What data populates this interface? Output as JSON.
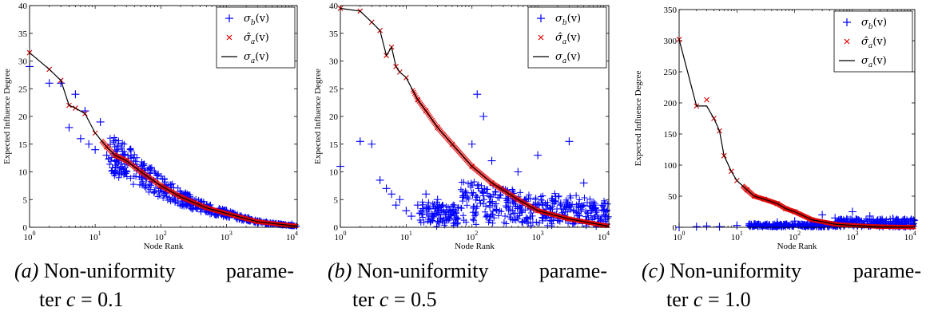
{
  "panels": [
    {
      "caption": {
        "label": "(a)",
        "line1_words": [
          "Non-uniformity",
          "parame-"
        ],
        "line2_prefix": "ter ",
        "var": "c",
        "line2_suffix": " = 0.1"
      },
      "legend": {
        "b": "σ_b(v)",
        "ahat": "σ̂_a(v)",
        "a": "σ_a(v)"
      }
    },
    {
      "caption": {
        "label": "(b)",
        "line1_words": [
          "Non-uniformity",
          "parame-"
        ],
        "line2_prefix": "ter ",
        "var": "c",
        "line2_suffix": " = 0.5"
      },
      "legend": {
        "b": "σ_b(v)",
        "ahat": "σ̂_a(v)",
        "a": "σ_a(v)"
      }
    },
    {
      "caption": {
        "label": "(c)",
        "line1_words": [
          "Non-uniformity",
          "parame-"
        ],
        "line2_prefix": "ter ",
        "var": "c",
        "line2_suffix": " = 1.0"
      },
      "legend": {
        "b": "σ_b(v)",
        "ahat": "σ̂_a(v)",
        "a": "σ_a(v)"
      }
    }
  ],
  "chart_data": [
    {
      "type": "scatter",
      "xlabel": "Node Rank",
      "ylabel": "Expected Influence Degree",
      "xscale": "log",
      "xlim": [
        1,
        12000
      ],
      "ylim": [
        0,
        40
      ],
      "yticks": [
        0,
        5,
        10,
        15,
        20,
        25,
        30,
        35,
        40
      ],
      "xticks": [
        1,
        10,
        100,
        1000,
        10000
      ],
      "legend_position": "top-right",
      "colors": {
        "sigma_b": "#0000ff",
        "sigma_a_hat": "#e00000",
        "sigma_a": "#000000"
      },
      "series": [
        {
          "name": "σ_b(v)",
          "marker": "+",
          "x": [
            1,
            2,
            3,
            4,
            5,
            6,
            7,
            8,
            10,
            12,
            15,
            20,
            30,
            50,
            100,
            200,
            500,
            1000,
            3000,
            10000
          ],
          "y": [
            29,
            26,
            26,
            18,
            24,
            16,
            21,
            15,
            14,
            19,
            13,
            12,
            10,
            11,
            7,
            6,
            4,
            3,
            1,
            0.5
          ]
        },
        {
          "name": "σ̂_a(v)",
          "marker": "x",
          "x": [
            1,
            2,
            3,
            4,
            5,
            7,
            10,
            15,
            20,
            30,
            50,
            100,
            200,
            500,
            1000,
            3000,
            10000
          ],
          "y": [
            31.5,
            28.5,
            26.5,
            22,
            21.5,
            20.5,
            17,
            14.5,
            13,
            12,
            10,
            7.5,
            5.5,
            3.5,
            2.5,
            1,
            0.3
          ]
        },
        {
          "name": "σ_a(v)",
          "marker": "line",
          "x": [
            1,
            2,
            3,
            4,
            5,
            7,
            10,
            15,
            20,
            30,
            50,
            100,
            200,
            500,
            1000,
            3000,
            12000
          ],
          "y": [
            31.5,
            28.5,
            26.5,
            22,
            21.5,
            20.5,
            17,
            14.5,
            13,
            12,
            10,
            7.5,
            5.5,
            3.5,
            2.5,
            1,
            0.2
          ]
        }
      ]
    },
    {
      "type": "scatter",
      "xlabel": "Node Rank",
      "ylabel": "Expected Influence Degree",
      "xscale": "log",
      "xlim": [
        1,
        12000
      ],
      "ylim": [
        0,
        40
      ],
      "yticks": [
        0,
        5,
        10,
        15,
        20,
        25,
        30,
        35,
        40
      ],
      "xticks": [
        1,
        10,
        100,
        1000,
        10000
      ],
      "legend_position": "top-right",
      "colors": {
        "sigma_b": "#0000ff",
        "sigma_a_hat": "#e00000",
        "sigma_a": "#000000"
      },
      "series": [
        {
          "name": "σ_b(v)",
          "marker": "+",
          "x": [
            1,
            2,
            3,
            4,
            5,
            6,
            7,
            8,
            10,
            12,
            15,
            20,
            30,
            50,
            100,
            120,
            150,
            200,
            500,
            1000,
            3000,
            5000,
            10000
          ],
          "y": [
            11,
            15.5,
            15,
            8.5,
            7,
            6,
            4,
            5,
            3,
            2,
            4,
            6,
            5,
            3,
            15,
            24,
            20,
            12,
            10,
            13,
            15.5,
            8,
            3
          ]
        },
        {
          "name": "σ̂_a(v)",
          "marker": "x",
          "x": [
            1,
            2,
            3,
            4,
            5,
            6,
            7,
            8,
            10,
            15,
            20,
            30,
            50,
            100,
            200,
            500,
            1000,
            3000,
            10000
          ],
          "y": [
            39.5,
            39,
            37,
            35.5,
            31,
            32.5,
            29,
            28,
            27,
            23,
            21,
            18,
            15,
            11,
            8,
            5,
            3,
            1.5,
            0.3
          ]
        },
        {
          "name": "σ_a(v)",
          "marker": "line",
          "x": [
            1,
            2,
            3,
            4,
            5,
            6,
            7,
            8,
            10,
            15,
            20,
            30,
            50,
            100,
            200,
            500,
            1000,
            3000,
            12000
          ],
          "y": [
            39.5,
            39,
            37,
            35.5,
            31,
            32.5,
            29,
            28,
            27,
            23,
            21,
            18,
            15,
            11,
            8,
            5,
            3,
            1.5,
            0.2
          ]
        }
      ]
    },
    {
      "type": "scatter",
      "xlabel": "Node Rank",
      "ylabel": "Expected Influence Degree",
      "xscale": "log",
      "xlim": [
        1,
        12000
      ],
      "ylim": [
        0,
        350
      ],
      "yticks": [
        0,
        50,
        100,
        150,
        200,
        250,
        300,
        350
      ],
      "xticks": [
        1,
        10,
        100,
        1000,
        10000
      ],
      "legend_position": "top-right",
      "colors": {
        "sigma_b": "#0000ff",
        "sigma_a_hat": "#e00000",
        "sigma_a": "#000000"
      },
      "series": [
        {
          "name": "σ_b(v)",
          "marker": "+",
          "x": [
            1,
            2,
            3,
            5,
            10,
            20,
            50,
            100,
            200,
            300,
            500,
            1000,
            2000,
            3000,
            5000,
            10000
          ],
          "y": [
            0,
            1,
            2,
            1,
            3,
            5,
            8,
            10,
            8,
            20,
            15,
            25,
            18,
            12,
            14,
            10
          ]
        },
        {
          "name": "σ̂_a(v)",
          "marker": "x",
          "x": [
            1,
            2,
            3,
            4,
            5,
            6,
            8,
            10,
            15,
            20,
            30,
            50,
            70,
            100,
            200,
            500,
            1000,
            3000,
            10000
          ],
          "y": [
            302,
            195,
            205,
            175,
            155,
            115,
            90,
            75,
            60,
            50,
            45,
            38,
            30,
            25,
            12,
            5,
            3,
            1,
            0.5
          ]
        },
        {
          "name": "σ_a(v)",
          "marker": "line",
          "x": [
            1,
            2,
            3,
            4,
            5,
            6,
            8,
            10,
            15,
            20,
            30,
            50,
            70,
            100,
            200,
            500,
            1000,
            3000,
            12000
          ],
          "y": [
            302,
            195,
            195,
            175,
            155,
            115,
            90,
            75,
            60,
            50,
            45,
            38,
            30,
            25,
            12,
            5,
            3,
            1,
            0.2
          ]
        }
      ]
    }
  ]
}
